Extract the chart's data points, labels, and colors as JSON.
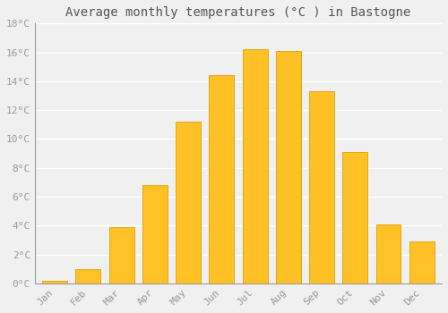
{
  "title": "Average monthly temperatures (°C ) in Bastogne",
  "months": [
    "Jan",
    "Feb",
    "Mar",
    "Apr",
    "May",
    "Jun",
    "Jul",
    "Aug",
    "Sep",
    "Oct",
    "Nov",
    "Dec"
  ],
  "temperatures": [
    0.2,
    1.0,
    3.9,
    6.8,
    11.2,
    14.4,
    16.2,
    16.1,
    13.3,
    9.1,
    4.1,
    2.9
  ],
  "bar_color": "#FFC125",
  "bar_edge_color": "#DDA000",
  "background_color": "#F0F0F0",
  "grid_color": "#FFFFFF",
  "ylim": [
    0,
    18
  ],
  "yticks": [
    0,
    2,
    4,
    6,
    8,
    10,
    12,
    14,
    16,
    18
  ],
  "ytick_labels": [
    "0°C",
    "2°C",
    "4°C",
    "6°C",
    "8°C",
    "10°C",
    "12°C",
    "14°C",
    "16°C",
    "18°C"
  ],
  "title_fontsize": 10,
  "tick_fontsize": 8,
  "font_family": "monospace",
  "tick_color": "#999999",
  "title_color": "#555555",
  "bar_width": 0.75
}
